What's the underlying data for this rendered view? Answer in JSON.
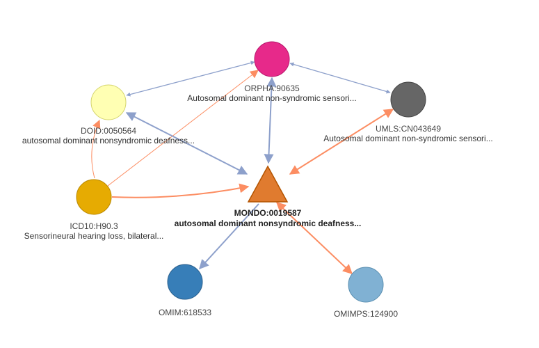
{
  "graph": {
    "center": {
      "id": "MONDO:0019587",
      "name": "autosomal dominant nonsyndromic deafness...",
      "color": "#e07b2f",
      "stroke": "#b35400"
    },
    "nodes": [
      {
        "key": "orpha",
        "id": "ORPHA:90635",
        "name": "Autosomal dominant non-syndromic sensori...",
        "color": "#e7298a"
      },
      {
        "key": "doid",
        "id": "DOID:0050564",
        "name": "autosomal dominant nonsyndromic deafness...",
        "color": "#ffffb3"
      },
      {
        "key": "umls",
        "id": "UMLS:CN043649",
        "name": "Autosomal dominant non-syndromic sensori...",
        "color": "#666666"
      },
      {
        "key": "icd10",
        "id": "ICD10:H90.3",
        "name": "Sensorineural hearing loss, bilateral...",
        "color": "#e6ab02"
      },
      {
        "key": "omim",
        "id": "OMIM:618533",
        "name": "",
        "color": "#377eb8"
      },
      {
        "key": "omimps",
        "id": "OMIMPS:124900",
        "name": "",
        "color": "#80b1d3"
      }
    ],
    "edge_colors": {
      "blue": "#8da0cb",
      "orange": "#fc8d62"
    }
  }
}
